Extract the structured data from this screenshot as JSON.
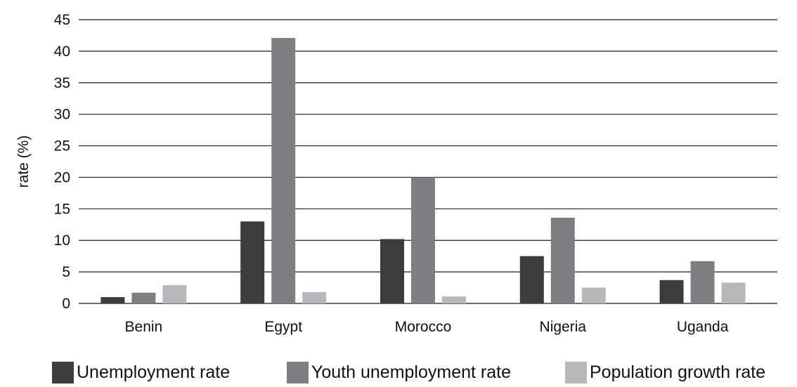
{
  "chart_data": {
    "type": "bar",
    "title": "",
    "xlabel": "",
    "ylabel": "rate (%)",
    "ylim": [
      0,
      45
    ],
    "yticks": [
      "0",
      "5",
      "10",
      "15",
      "20",
      "25",
      "30",
      "35",
      "40",
      "45"
    ],
    "grid": true,
    "legend_position": "bottom",
    "categories": [
      "Benin",
      "Egypt",
      "Morocco",
      "Nigeria",
      "Uganda"
    ],
    "series": [
      {
        "name": "Unemployment rate",
        "color": "#3c3c3c",
        "values": [
          1.0,
          13.0,
          10.2,
          7.5,
          3.7
        ]
      },
      {
        "name": "Youth unemployment rate",
        "color": "#7f7f81",
        "values": [
          1.7,
          42.1,
          20.0,
          13.6,
          6.7
        ]
      },
      {
        "name": "Population growth rate",
        "color": "#b8b8bb",
        "values": [
          2.9,
          1.8,
          1.1,
          2.5,
          3.3
        ]
      }
    ]
  }
}
